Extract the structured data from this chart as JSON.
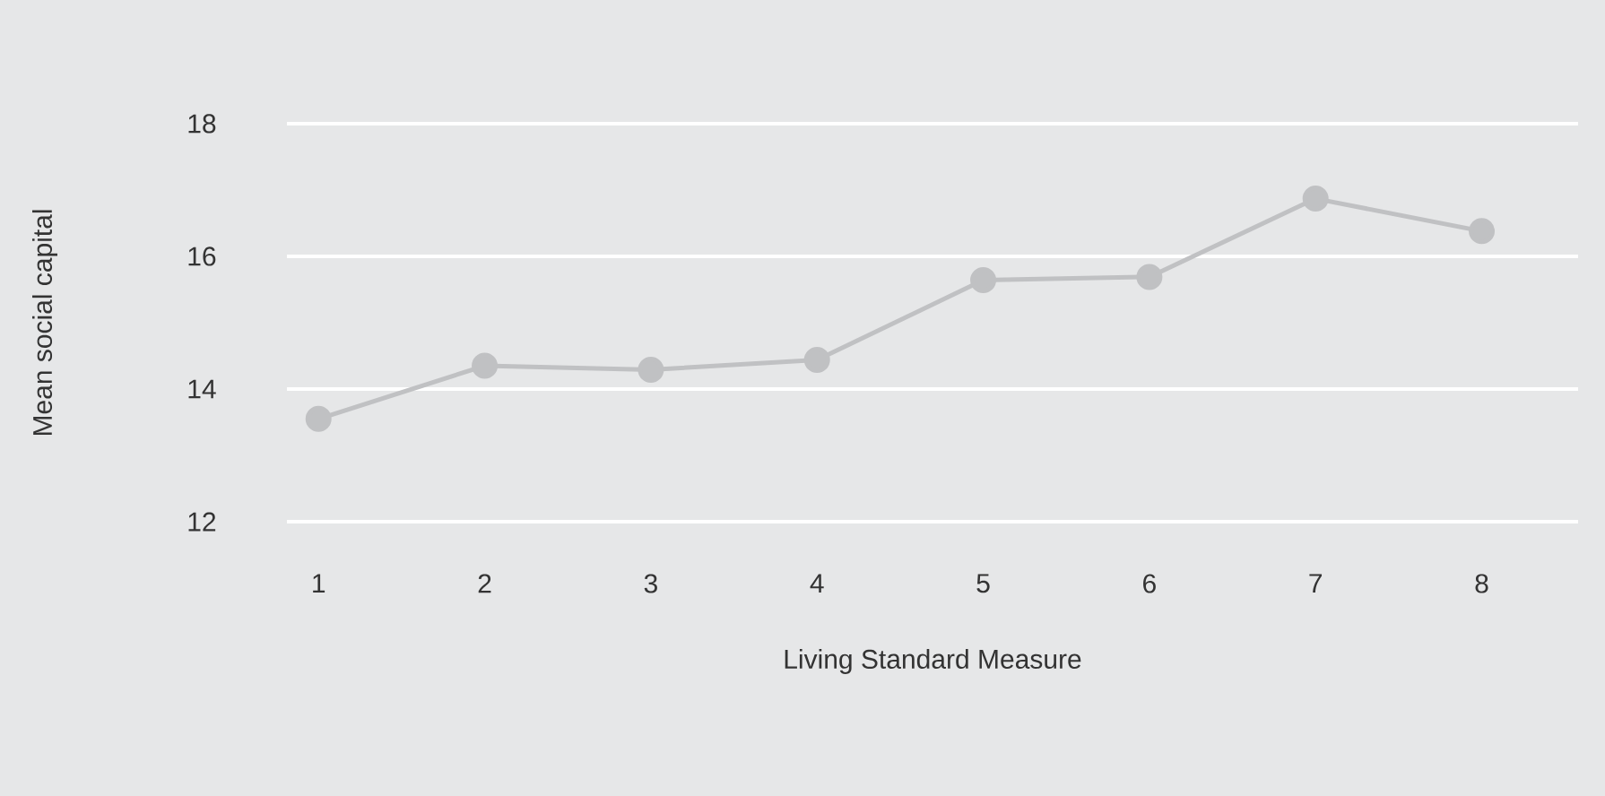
{
  "chart_data": {
    "type": "line",
    "xlabel": "Living Standard Measure",
    "ylabel": "Mean social capital",
    "categories": [
      "1",
      "2",
      "3",
      "4",
      "5",
      "6",
      "7",
      "8"
    ],
    "series": [
      {
        "color": "#c0c1c3",
        "values": [
          13.55,
          14.35,
          14.29,
          14.44,
          15.64,
          15.69,
          16.87,
          16.38
        ]
      }
    ],
    "ylim": [
      12,
      18
    ],
    "yticks": [
      12,
      14,
      16,
      18
    ],
    "grid": "y",
    "marker": "circle",
    "line_style": "solid"
  }
}
